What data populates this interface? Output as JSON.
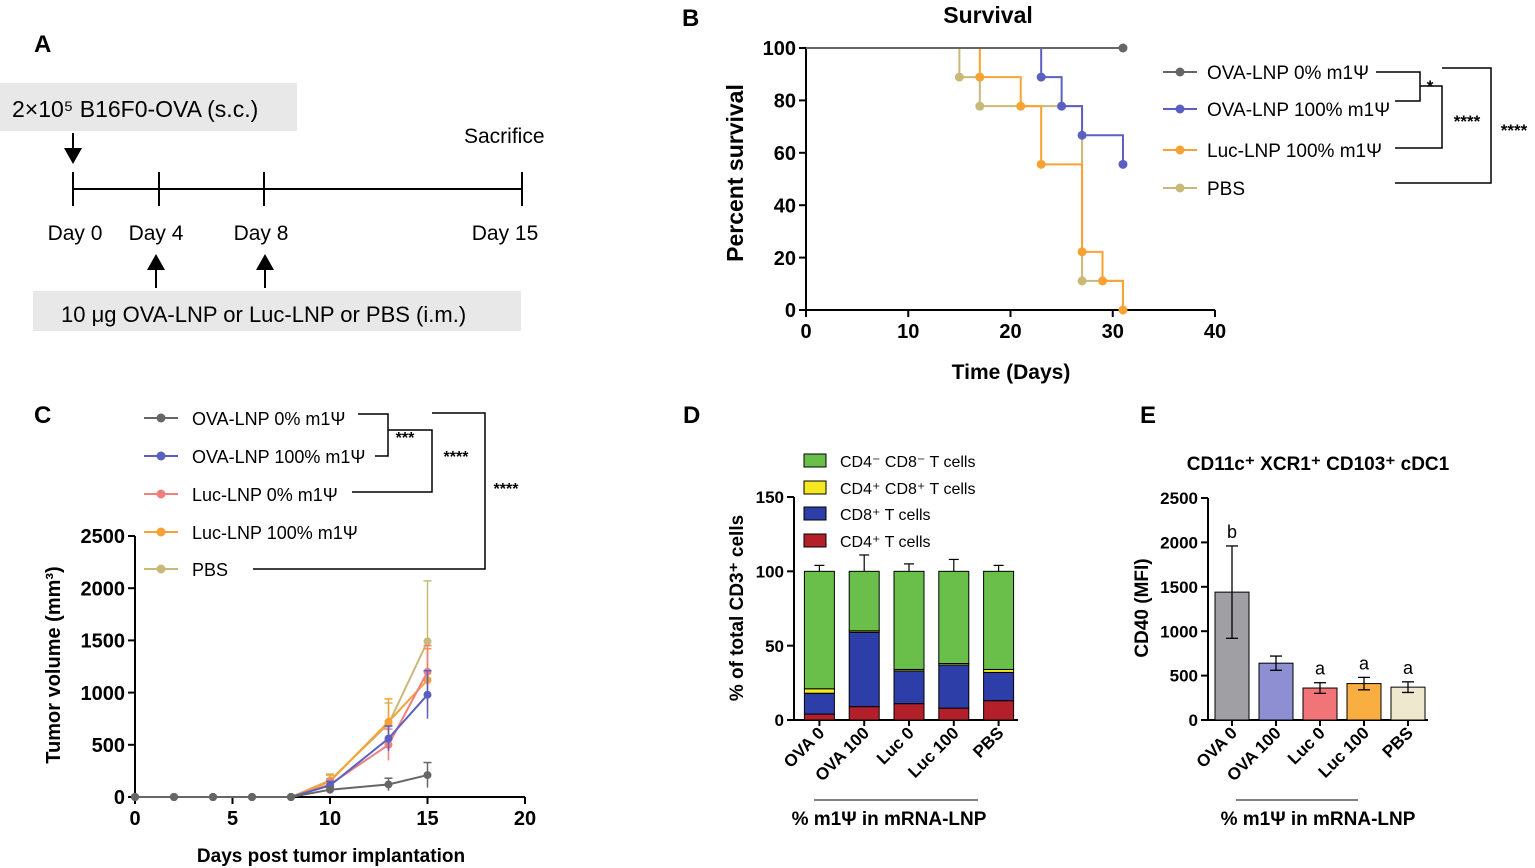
{
  "colors": {
    "ova0": "#666666",
    "ova100": "#5c5fc2",
    "luc0": "#f08080",
    "luc100": "#f7a233",
    "pbs": "#c8b978",
    "cd4neg": "#6abf4b",
    "cd4cd8": "#f5e820",
    "cd8": "#2e3ea8",
    "cd4": "#b3202a",
    "barOva0": "#a0a0a4",
    "barOva100": "#8d8fd2",
    "barLuc0": "#f07478",
    "barLuc100": "#f8ae40",
    "barPbs": "#eee8cf",
    "boxBg": "#e8e8e8",
    "sig": "#000000"
  },
  "panelA": {
    "letter": "A",
    "implant_label": "2×10⁵ B16F0-OVA (s.c.)",
    "sacrifice_label": "Sacrifice",
    "days": [
      "Day 0",
      "Day 4",
      "Day 8",
      "Day 15"
    ],
    "vaccine_label": "10 μg OVA-LNP or Luc-LNP or PBS (i.m.)"
  },
  "chart_data": [
    {
      "id": "B",
      "letter": "B",
      "type": "line",
      "title": "Survival",
      "xlabel": "Time (Days)",
      "ylabel": "Percent survival",
      "xlim": [
        0,
        40
      ],
      "ylim": [
        0,
        100
      ],
      "xticks": [
        "0",
        "10",
        "20",
        "30",
        "40"
      ],
      "yticks": [
        "0",
        "20",
        "40",
        "60",
        "80",
        "100"
      ],
      "series": [
        {
          "name": "OVA-LNP 0% m1Ψ",
          "color": "ova0",
          "x": [
            0,
            31
          ],
          "y": [
            100,
            100
          ],
          "points_x": [
            31
          ],
          "points_y": [
            100
          ]
        },
        {
          "name": "OVA-LNP 100% m1Ψ",
          "color": "ova100",
          "x": [
            0,
            23,
            23,
            25,
            25,
            27,
            27,
            31,
            31
          ],
          "y": [
            100,
            100,
            88.9,
            88.9,
            77.8,
            77.8,
            66.7,
            66.7,
            55.6
          ],
          "points_x": [
            23,
            25,
            27,
            31
          ],
          "points_y": [
            88.9,
            77.8,
            66.7,
            55.6
          ]
        },
        {
          "name": "Luc-LNP 100% m1Ψ",
          "color": "luc100",
          "x": [
            0,
            17,
            17,
            21,
            21,
            23,
            23,
            27,
            27,
            29,
            29,
            31,
            31
          ],
          "y": [
            100,
            100,
            88.9,
            88.9,
            77.8,
            77.8,
            55.6,
            55.6,
            22.2,
            22.2,
            11.1,
            11.1,
            0
          ],
          "points_x": [
            17,
            21,
            23,
            27,
            29,
            31
          ],
          "points_y": [
            88.9,
            77.8,
            55.6,
            22.2,
            11.1,
            0
          ]
        },
        {
          "name": "PBS",
          "color": "pbs",
          "x": [
            0,
            15,
            15,
            17,
            17,
            27,
            27,
            29,
            29,
            31,
            31
          ],
          "y": [
            100,
            100,
            88.9,
            88.9,
            77.8,
            77.8,
            11.1,
            11.1,
            11.1,
            11.1,
            0
          ],
          "points_x": [
            15,
            17,
            27
          ],
          "points_y": [
            88.9,
            77.8,
            11.1
          ]
        }
      ],
      "significance": [
        "*",
        "****",
        "****"
      ]
    },
    {
      "id": "C",
      "letter": "C",
      "type": "line",
      "xlabel": "Days post tumor implantation",
      "ylabel": "Tumor volume (mm³)",
      "xlim": [
        0,
        20
      ],
      "ylim": [
        0,
        2500
      ],
      "xticks": [
        "0",
        "5",
        "10",
        "15",
        "20"
      ],
      "yticks": [
        "0",
        "500",
        "1000",
        "1500",
        "2000",
        "2500"
      ],
      "x": [
        0,
        2,
        4,
        6,
        8,
        10,
        13,
        15
      ],
      "series": [
        {
          "name": "OVA-LNP 0% m1Ψ",
          "color": "ova0",
          "values": [
            0,
            0,
            0,
            0,
            0,
            70,
            120,
            210
          ],
          "err": [
            0,
            0,
            0,
            0,
            0,
            20,
            60,
            120
          ]
        },
        {
          "name": "OVA-LNP 100% m1Ψ",
          "color": "ova100",
          "values": [
            0,
            0,
            0,
            0,
            0,
            110,
            560,
            980
          ],
          "err": [
            0,
            0,
            0,
            0,
            0,
            40,
            120,
            230
          ]
        },
        {
          "name": "Luc-LNP 0% m1Ψ",
          "color": "luc0",
          "values": [
            0,
            0,
            0,
            0,
            0,
            120,
            500,
            1200
          ],
          "err": [
            0,
            0,
            0,
            0,
            0,
            50,
            150,
            250
          ]
        },
        {
          "name": "Luc-LNP 100% m1Ψ",
          "color": "luc100",
          "values": [
            0,
            0,
            0,
            0,
            0,
            150,
            720,
            1120
          ],
          "err": [
            0,
            0,
            0,
            0,
            0,
            60,
            220,
            300
          ]
        },
        {
          "name": "PBS",
          "color": "pbs",
          "values": [
            0,
            0,
            0,
            0,
            0,
            160,
            700,
            1490
          ],
          "err": [
            0,
            0,
            0,
            0,
            0,
            60,
            200,
            580
          ]
        }
      ],
      "significance": [
        "***",
        "****",
        "****"
      ]
    },
    {
      "id": "D",
      "letter": "D",
      "type": "bar",
      "stacked": true,
      "ylabel": "% of total CD3⁺ cells",
      "xlabel": "% m1Ψ in mRNA-LNP",
      "ylim": [
        0,
        150
      ],
      "yticks": [
        "0",
        "50",
        "100",
        "150"
      ],
      "categories": [
        "OVA 0",
        "OVA 100",
        "Luc 0",
        "Luc 100",
        "PBS"
      ],
      "series": [
        {
          "name": "CD4⁺ T cells",
          "color": "cd4",
          "values": [
            4,
            9,
            11,
            8,
            13
          ],
          "err": [
            1.5,
            1.5,
            2,
            2,
            3
          ]
        },
        {
          "name": "CD8⁺ T cells",
          "color": "cd8",
          "values": [
            14,
            50,
            22,
            29,
            19
          ],
          "err": [
            2,
            10,
            3,
            6,
            2
          ]
        },
        {
          "name": "CD4⁺ CD8⁺ T cells",
          "color": "cd4cd8",
          "values": [
            3,
            1,
            1,
            1,
            2
          ],
          "err": [
            0,
            0,
            0,
            0,
            0
          ]
        },
        {
          "name": "CD4⁻ CD8⁻ T cells",
          "color": "cd4neg",
          "values": [
            79,
            40,
            66,
            62,
            66
          ],
          "err": [
            4,
            11,
            5,
            8,
            4
          ]
        }
      ]
    },
    {
      "id": "E",
      "letter": "E",
      "type": "bar",
      "title": "CD11c⁺ XCR1⁺ CD103⁺ cDC1",
      "ylabel": "CD40 (MFI)",
      "xlabel": "% m1Ψ in mRNA-LNP",
      "ylim": [
        0,
        2500
      ],
      "yticks": [
        "0",
        "500",
        "1000",
        "1500",
        "2000",
        "2500"
      ],
      "categories": [
        "OVA 0",
        "OVA 100",
        "Luc 0",
        "Luc 100",
        "PBS"
      ],
      "values": [
        1440,
        640,
        360,
        410,
        370
      ],
      "err": [
        520,
        80,
        60,
        70,
        60
      ],
      "colors": [
        "barOva0",
        "barOva100",
        "barLuc0",
        "barLuc100",
        "barPbs"
      ],
      "letters": [
        "b",
        "",
        "a",
        "a",
        "a"
      ]
    }
  ]
}
